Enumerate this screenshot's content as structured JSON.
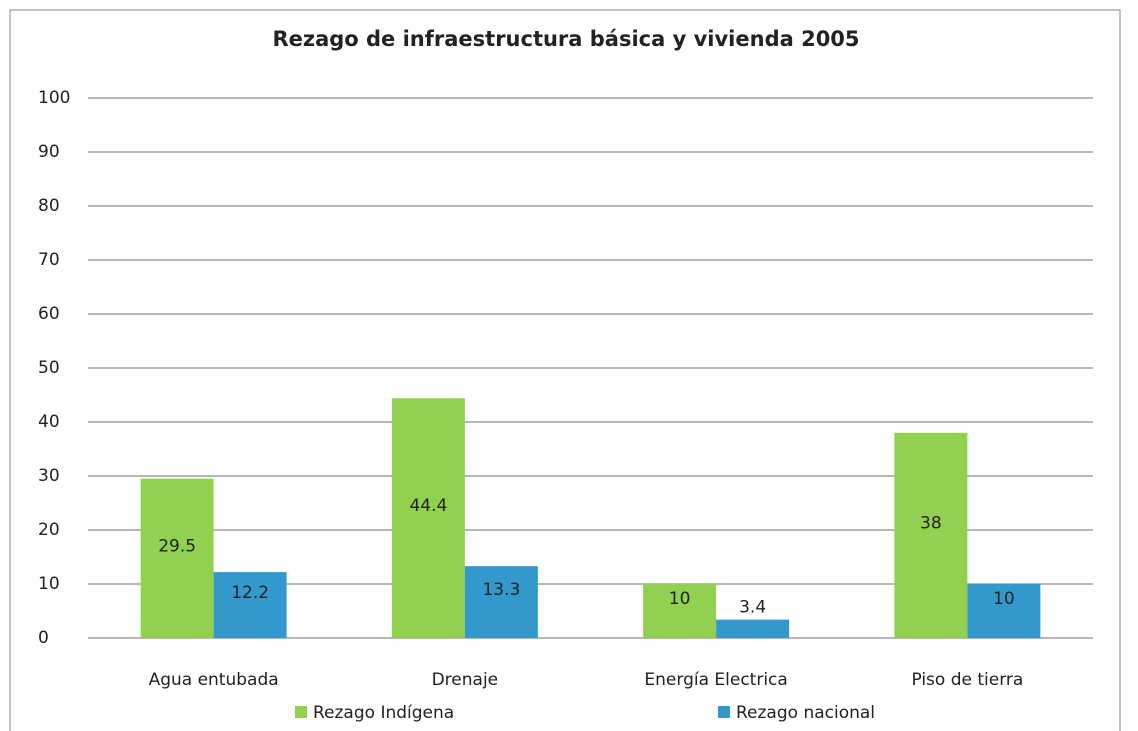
{
  "chart_data": {
    "type": "bar",
    "title": "Rezago de infraestructura básica y vivienda 2005",
    "categories": [
      "Agua entubada",
      "Drenaje",
      "Energía Electrica",
      "Piso de tierra"
    ],
    "series": [
      {
        "name": "Rezago Indígena",
        "color": "#92d050",
        "values": [
          29.5,
          44.4,
          10,
          38
        ]
      },
      {
        "name": "Rezago nacional",
        "color": "#3399cc",
        "values": [
          12.2,
          13.3,
          3.4,
          10
        ]
      }
    ],
    "ylim": [
      0,
      100
    ],
    "yticks": [
      0,
      10,
      20,
      30,
      40,
      50,
      60,
      70,
      80,
      90,
      100
    ],
    "grid": true,
    "legend": "bottom"
  }
}
